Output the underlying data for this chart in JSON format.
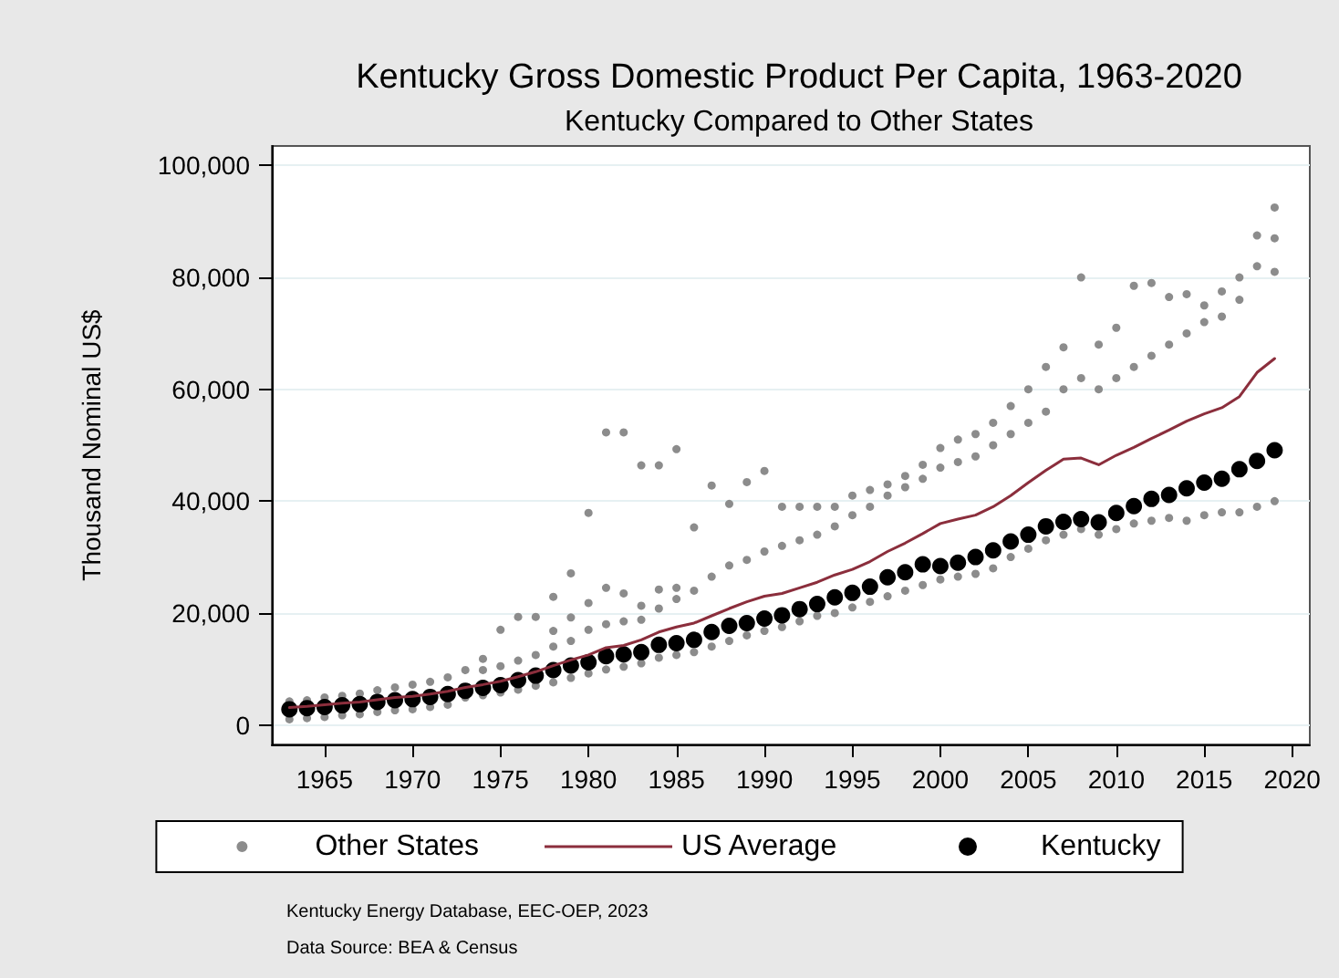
{
  "chart_data": {
    "type": "scatter",
    "title": "Kentucky Gross Domestic Product Per Capita, 1963-2020",
    "subtitle": "Kentucky Compared to Other States",
    "ylabel": "Thousand Nominal US$",
    "xlim": [
      1962,
      2021
    ],
    "xticks": [
      1965,
      1970,
      1975,
      1980,
      1985,
      1990,
      1995,
      2000,
      2005,
      2010,
      2015,
      2020
    ],
    "ylim": [
      -3500,
      103500
    ],
    "yticks": [
      {
        "value": 0,
        "label": "0"
      },
      {
        "value": 20000,
        "label": "20,000"
      },
      {
        "value": 40000,
        "label": "40,000"
      },
      {
        "value": 60000,
        "label": "60,000"
      },
      {
        "value": 80000,
        "label": "80,000"
      },
      {
        "value": 100000,
        "label": "100,000"
      }
    ],
    "grid": "y",
    "legend": "bottom",
    "annotations": [
      "Kentucky Energy Database, EEC-OEP, 2023",
      "Data Source: BEA & Census"
    ],
    "series": [
      {
        "name": "Other States",
        "marker": "circle",
        "color": "#8c8c8c",
        "x": [
          1963,
          1963,
          1964,
          1964,
          1965,
          1965,
          1966,
          1966,
          1967,
          1967,
          1968,
          1968,
          1969,
          1969,
          1970,
          1970,
          1971,
          1971,
          1972,
          1972,
          1973,
          1973,
          1974,
          1974,
          1974,
          1975,
          1975,
          1975,
          1976,
          1976,
          1976,
          1977,
          1977,
          1977,
          1978,
          1978,
          1978,
          1978,
          1979,
          1979,
          1979,
          1979,
          1980,
          1980,
          1980,
          1980,
          1981,
          1981,
          1981,
          1981,
          1982,
          1982,
          1982,
          1982,
          1983,
          1983,
          1983,
          1983,
          1984,
          1984,
          1984,
          1984,
          1985,
          1985,
          1985,
          1985,
          1986,
          1986,
          1986,
          1987,
          1987,
          1987,
          1988,
          1988,
          1988,
          1989,
          1989,
          1989,
          1990,
          1990,
          1990,
          1991,
          1991,
          1991,
          1992,
          1992,
          1992,
          1993,
          1993,
          1993,
          1994,
          1994,
          1994,
          1995,
          1995,
          1995,
          1996,
          1996,
          1996,
          1997,
          1997,
          1997,
          1998,
          1998,
          1998,
          1999,
          1999,
          1999,
          2000,
          2000,
          2000,
          2001,
          2001,
          2001,
          2002,
          2002,
          2002,
          2003,
          2003,
          2003,
          2004,
          2004,
          2004,
          2005,
          2005,
          2005,
          2006,
          2006,
          2006,
          2007,
          2007,
          2007,
          2008,
          2008,
          2008,
          2009,
          2009,
          2009,
          2010,
          2010,
          2010,
          2011,
          2011,
          2011,
          2012,
          2012,
          2012,
          2013,
          2013,
          2013,
          2014,
          2014,
          2014,
          2015,
          2015,
          2015,
          2016,
          2016,
          2016,
          2017,
          2017,
          2017,
          2018,
          2018,
          2018,
          2019,
          2019,
          2019,
          2019
        ],
        "values": [
          1000,
          4200,
          1200,
          4400,
          1400,
          4900,
          1700,
          5200,
          1900,
          5600,
          2300,
          6200,
          2600,
          6700,
          2800,
          7200,
          3200,
          7700,
          3600,
          8500,
          4900,
          9800,
          5300,
          9800,
          11800,
          5800,
          10500,
          17000,
          6300,
          11500,
          19300,
          7000,
          12500,
          19300,
          7600,
          14000,
          16800,
          22900,
          8400,
          15000,
          19200,
          27100,
          9200,
          17000,
          21800,
          37900,
          9900,
          18000,
          24500,
          52300,
          10400,
          18500,
          23500,
          52300,
          11000,
          18800,
          21300,
          46400,
          12000,
          20800,
          24200,
          46400,
          12500,
          22500,
          24500,
          49300,
          13000,
          24000,
          35300,
          14000,
          26500,
          42800,
          15000,
          28500,
          39500,
          16000,
          29500,
          43400,
          16800,
          31000,
          45400,
          17500,
          32000,
          39000,
          18500,
          33000,
          39000,
          19500,
          34000,
          39000,
          20000,
          35500,
          39000,
          21000,
          37500,
          41000,
          22000,
          39000,
          42000,
          23000,
          41000,
          43000,
          24000,
          42500,
          44500,
          25000,
          44000,
          46500,
          26000,
          46000,
          49500,
          26500,
          47000,
          51000,
          27000,
          48000,
          52000,
          28000,
          50000,
          54000,
          30000,
          52000,
          57000,
          31500,
          54000,
          60000,
          33000,
          56000,
          64000,
          34000,
          60000,
          67500,
          35000,
          62000,
          80000,
          34000,
          60000,
          68000,
          35000,
          62000,
          71000,
          36000,
          64000,
          78500,
          36500,
          66000,
          79000,
          37000,
          68000,
          76500,
          36500,
          70000,
          77000,
          37500,
          72000,
          75000,
          38000,
          73000,
          77500,
          38000,
          76000,
          80000,
          39000,
          82000,
          87500,
          40000,
          81000,
          87000,
          92500
        ]
      },
      {
        "name": "US Average",
        "type": "line",
        "marker": "none",
        "line_style": "solid",
        "color": "#8b2e3c",
        "x": [
          1963,
          1964,
          1965,
          1966,
          1967,
          1968,
          1969,
          1970,
          1971,
          1972,
          1973,
          1974,
          1975,
          1976,
          1977,
          1978,
          1979,
          1980,
          1981,
          1982,
          1983,
          1984,
          1985,
          1986,
          1987,
          1988,
          1989,
          1990,
          1991,
          1992,
          1993,
          1994,
          1995,
          1996,
          1997,
          1998,
          1999,
          2000,
          2001,
          2002,
          2003,
          2004,
          2005,
          2006,
          2007,
          2008,
          2009,
          2010,
          2011,
          2012,
          2013,
          2014,
          2015,
          2016,
          2017,
          2018,
          2019
        ],
        "values": [
          3100,
          3300,
          3600,
          3900,
          4100,
          4500,
          4900,
          5100,
          5500,
          6000,
          6700,
          7200,
          7800,
          8600,
          9500,
          10600,
          11600,
          12500,
          13800,
          14200,
          15200,
          16600,
          17500,
          18200,
          19500,
          20800,
          22000,
          23000,
          23500,
          24500,
          25500,
          26800,
          27800,
          29200,
          31000,
          32500,
          34200,
          36000,
          36800,
          37500,
          39000,
          41000,
          43300,
          45500,
          47500,
          47700,
          46500,
          48200,
          49600,
          51200,
          52700,
          54300,
          55600,
          56700,
          58700,
          63000,
          65500
        ]
      },
      {
        "name": "Kentucky",
        "marker": "circle",
        "color": "#000000",
        "x": [
          1963,
          1964,
          1965,
          1966,
          1967,
          1968,
          1969,
          1970,
          1971,
          1972,
          1973,
          1974,
          1975,
          1976,
          1977,
          1978,
          1979,
          1980,
          1981,
          1982,
          1983,
          1984,
          1985,
          1986,
          1987,
          1988,
          1989,
          1990,
          1991,
          1992,
          1993,
          1994,
          1995,
          1996,
          1997,
          1998,
          1999,
          2000,
          2001,
          2002,
          2003,
          2004,
          2005,
          2006,
          2007,
          2008,
          2009,
          2010,
          2011,
          2012,
          2013,
          2014,
          2015,
          2016,
          2017,
          2018,
          2019
        ],
        "values": [
          2800,
          3000,
          3200,
          3500,
          3700,
          4100,
          4400,
          4600,
          5000,
          5500,
          6100,
          6600,
          7100,
          8000,
          8800,
          9800,
          10600,
          11200,
          12300,
          12600,
          13000,
          14300,
          14600,
          15200,
          16600,
          17700,
          18200,
          19000,
          19600,
          20700,
          21600,
          22800,
          23600,
          24700,
          26400,
          27300,
          28700,
          28400,
          29000,
          30000,
          31200,
          32800,
          34000,
          35500,
          36300,
          36800,
          36200,
          37900,
          39100,
          40400,
          41100,
          42300,
          43300,
          44000,
          45700,
          47200,
          49100
        ]
      }
    ]
  }
}
